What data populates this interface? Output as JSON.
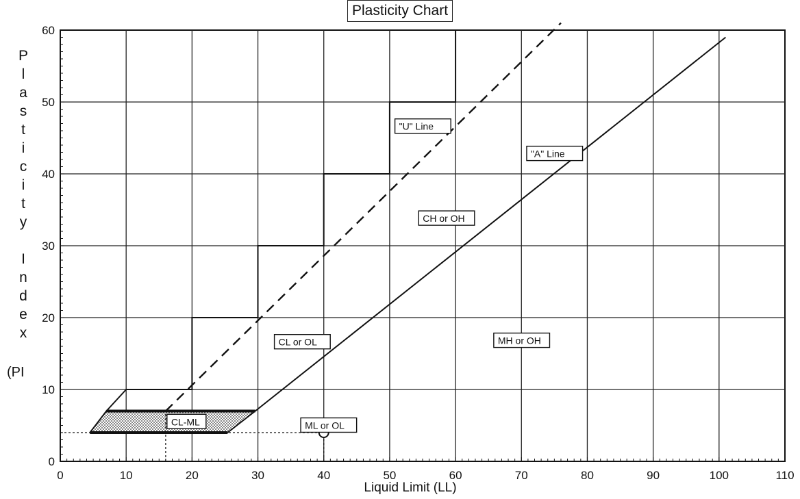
{
  "chart_data": {
    "type": "line",
    "title": "Plasticity Chart",
    "xlabel": "Liquid Limit (LL)",
    "ylabel": "Plasticity Index (PI)",
    "xlim": [
      0,
      110
    ],
    "ylim": [
      0,
      60
    ],
    "x_ticks": [
      0,
      10,
      20,
      30,
      40,
      50,
      60,
      70,
      80,
      90,
      100,
      110
    ],
    "y_ticks": [
      0,
      10,
      20,
      30,
      40,
      50,
      60
    ],
    "grid": true,
    "series": [
      {
        "name": "\"U\" Line",
        "style": "dashed",
        "points": [
          [
            16,
            7
          ],
          [
            76,
            61
          ]
        ]
      },
      {
        "name": "\"A\" Line",
        "style": "solid",
        "points": [
          [
            25.4,
            4
          ],
          [
            29.6,
            7
          ],
          [
            101,
            59
          ]
        ]
      },
      {
        "style": "solid",
        "points": [
          [
            10,
            10
          ],
          [
            20,
            10
          ],
          [
            20,
            20
          ],
          [
            30,
            20
          ],
          [
            30,
            30
          ],
          [
            40,
            30
          ],
          [
            40,
            40
          ],
          [
            50,
            40
          ],
          [
            50,
            50
          ],
          [
            60,
            50
          ],
          [
            60,
            60
          ]
        ]
      },
      {
        "style": "solid",
        "points": [
          [
            7,
            7
          ],
          [
            10,
            10
          ]
        ]
      },
      {
        "style": "solid",
        "points": [
          [
            4.5,
            4
          ],
          [
            7,
            7
          ],
          [
            29.6,
            7
          ]
        ]
      },
      {
        "style": "solid",
        "points": [
          [
            4.5,
            4
          ],
          [
            25.4,
            4
          ]
        ]
      }
    ],
    "reference_lines": [
      {
        "axis": "y",
        "value": 4,
        "style": "dashed",
        "from_x": 0,
        "to_x": 40
      },
      {
        "axis": "x",
        "value": 16,
        "style": "dashed",
        "from_y": 0,
        "to_y": 7
      },
      {
        "axis": "x",
        "value": 40,
        "style": "dashed",
        "from_y": 0,
        "to_y": 4
      }
    ],
    "marker": {
      "x": 40,
      "y": 4
    },
    "annotations": [
      {
        "text": "\"U\" Line",
        "x": 50.8,
        "y": 46.6
      },
      {
        "text": "\"A\" Line",
        "x": 70.8,
        "y": 42.8
      },
      {
        "text": "CH or OH",
        "x": 54.4,
        "y": 33.8
      },
      {
        "text": "CL or OL",
        "x": 32.5,
        "y": 16.6
      },
      {
        "text": "MH or OH",
        "x": 65.8,
        "y": 16.8
      },
      {
        "text": "CL-ML",
        "x": 16.2,
        "y": 5.5
      },
      {
        "text": "ML or OL",
        "x": 36.5,
        "y": 5.0
      }
    ],
    "hatched_region": [
      [
        4.5,
        4
      ],
      [
        7,
        7
      ],
      [
        29.6,
        7
      ],
      [
        25.4,
        4
      ]
    ]
  },
  "y_axis_letters": [
    "P",
    "l",
    "a",
    "s",
    "t",
    "i",
    "c",
    "i",
    "t",
    "y",
    "",
    "I",
    "n",
    "d",
    "e",
    "x"
  ],
  "y_axis_paren": "(PI"
}
